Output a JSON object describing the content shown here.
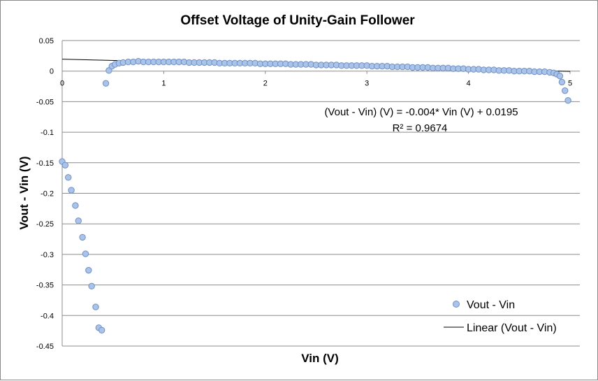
{
  "chart_data": {
    "type": "scatter",
    "title": "Offset Voltage of Unity-Gain Follower",
    "xlabel": "Vin (V)",
    "ylabel": "Vout - Vin (V)",
    "xlim": [
      0,
      5
    ],
    "ylim": [
      -0.45,
      0.05
    ],
    "x_ticks": [
      "0",
      "1",
      "2",
      "3",
      "4",
      "5"
    ],
    "y_ticks": [
      "0.05",
      "0",
      "-0.05",
      "-0.1",
      "-0.15",
      "-0.2",
      "-0.25",
      "-0.3",
      "-0.35",
      "-0.4",
      "-0.45"
    ],
    "grid": true,
    "legend_position": "bottom-right",
    "series": [
      {
        "name": "Vout - Vin",
        "kind": "scatter",
        "color": "#a9c4e8",
        "edge_color": "#6f8fc4",
        "points": [
          [
            0.0,
            -0.148
          ],
          [
            0.03,
            -0.154
          ],
          [
            0.06,
            -0.174
          ],
          [
            0.09,
            -0.195
          ],
          [
            0.13,
            -0.22
          ],
          [
            0.16,
            -0.245
          ],
          [
            0.2,
            -0.272
          ],
          [
            0.23,
            -0.299
          ],
          [
            0.26,
            -0.326
          ],
          [
            0.29,
            -0.352
          ],
          [
            0.33,
            -0.386
          ],
          [
            0.36,
            -0.42
          ],
          [
            0.39,
            -0.424
          ],
          [
            0.43,
            -0.02
          ],
          [
            0.46,
            0.001
          ],
          [
            0.49,
            0.008
          ],
          [
            0.52,
            0.011
          ],
          [
            0.56,
            0.013
          ],
          [
            0.6,
            0.014
          ],
          [
            0.65,
            0.015
          ],
          [
            0.7,
            0.015
          ],
          [
            0.75,
            0.016
          ],
          [
            0.8,
            0.015
          ],
          [
            0.85,
            0.015
          ],
          [
            0.9,
            0.015
          ],
          [
            0.95,
            0.015
          ],
          [
            1.0,
            0.015
          ],
          [
            1.05,
            0.015
          ],
          [
            1.1,
            0.015
          ],
          [
            1.15,
            0.015
          ],
          [
            1.2,
            0.015
          ],
          [
            1.25,
            0.014
          ],
          [
            1.3,
            0.014
          ],
          [
            1.35,
            0.014
          ],
          [
            1.4,
            0.014
          ],
          [
            1.45,
            0.014
          ],
          [
            1.5,
            0.014
          ],
          [
            1.55,
            0.013
          ],
          [
            1.6,
            0.013
          ],
          [
            1.65,
            0.013
          ],
          [
            1.7,
            0.013
          ],
          [
            1.75,
            0.013
          ],
          [
            1.8,
            0.013
          ],
          [
            1.85,
            0.013
          ],
          [
            1.9,
            0.013
          ],
          [
            1.95,
            0.012
          ],
          [
            2.0,
            0.012
          ],
          [
            2.05,
            0.012
          ],
          [
            2.1,
            0.012
          ],
          [
            2.15,
            0.012
          ],
          [
            2.2,
            0.012
          ],
          [
            2.25,
            0.011
          ],
          [
            2.3,
            0.011
          ],
          [
            2.35,
            0.011
          ],
          [
            2.4,
            0.011
          ],
          [
            2.45,
            0.011
          ],
          [
            2.5,
            0.01
          ],
          [
            2.55,
            0.01
          ],
          [
            2.6,
            0.01
          ],
          [
            2.65,
            0.01
          ],
          [
            2.7,
            0.01
          ],
          [
            2.75,
            0.009
          ],
          [
            2.8,
            0.009
          ],
          [
            2.85,
            0.009
          ],
          [
            2.9,
            0.009
          ],
          [
            2.95,
            0.009
          ],
          [
            3.0,
            0.009
          ],
          [
            3.05,
            0.008
          ],
          [
            3.1,
            0.008
          ],
          [
            3.15,
            0.008
          ],
          [
            3.2,
            0.008
          ],
          [
            3.25,
            0.007
          ],
          [
            3.3,
            0.007
          ],
          [
            3.35,
            0.007
          ],
          [
            3.4,
            0.007
          ],
          [
            3.45,
            0.006
          ],
          [
            3.5,
            0.006
          ],
          [
            3.55,
            0.006
          ],
          [
            3.6,
            0.006
          ],
          [
            3.65,
            0.005
          ],
          [
            3.7,
            0.005
          ],
          [
            3.75,
            0.005
          ],
          [
            3.8,
            0.005
          ],
          [
            3.85,
            0.004
          ],
          [
            3.9,
            0.004
          ],
          [
            3.95,
            0.004
          ],
          [
            4.0,
            0.003
          ],
          [
            4.05,
            0.003
          ],
          [
            4.1,
            0.003
          ],
          [
            4.15,
            0.002
          ],
          [
            4.2,
            0.002
          ],
          [
            4.25,
            0.002
          ],
          [
            4.3,
            0.001
          ],
          [
            4.35,
            0.001
          ],
          [
            4.4,
            0.001
          ],
          [
            4.45,
            0.0
          ],
          [
            4.5,
            0.0
          ],
          [
            4.55,
            0.0
          ],
          [
            4.6,
            0.0
          ],
          [
            4.65,
            -0.001
          ],
          [
            4.7,
            -0.001
          ],
          [
            4.75,
            -0.001
          ],
          [
            4.8,
            -0.002
          ],
          [
            4.84,
            -0.003
          ],
          [
            4.87,
            -0.005
          ],
          [
            4.9,
            -0.008
          ],
          [
            4.92,
            -0.018
          ],
          [
            4.95,
            -0.032
          ],
          [
            4.98,
            -0.048
          ]
        ]
      },
      {
        "name": "Linear (Vout - Vin)",
        "kind": "line",
        "color": "#000000",
        "slope": -0.004,
        "intercept": 0.0195,
        "x_range": [
          0,
          5
        ]
      }
    ],
    "annotation": {
      "equation": "(Vout - Vin) (V) = -0.004* Vin (V) + 0.0195",
      "r_squared": "R² = 0.9674"
    }
  }
}
